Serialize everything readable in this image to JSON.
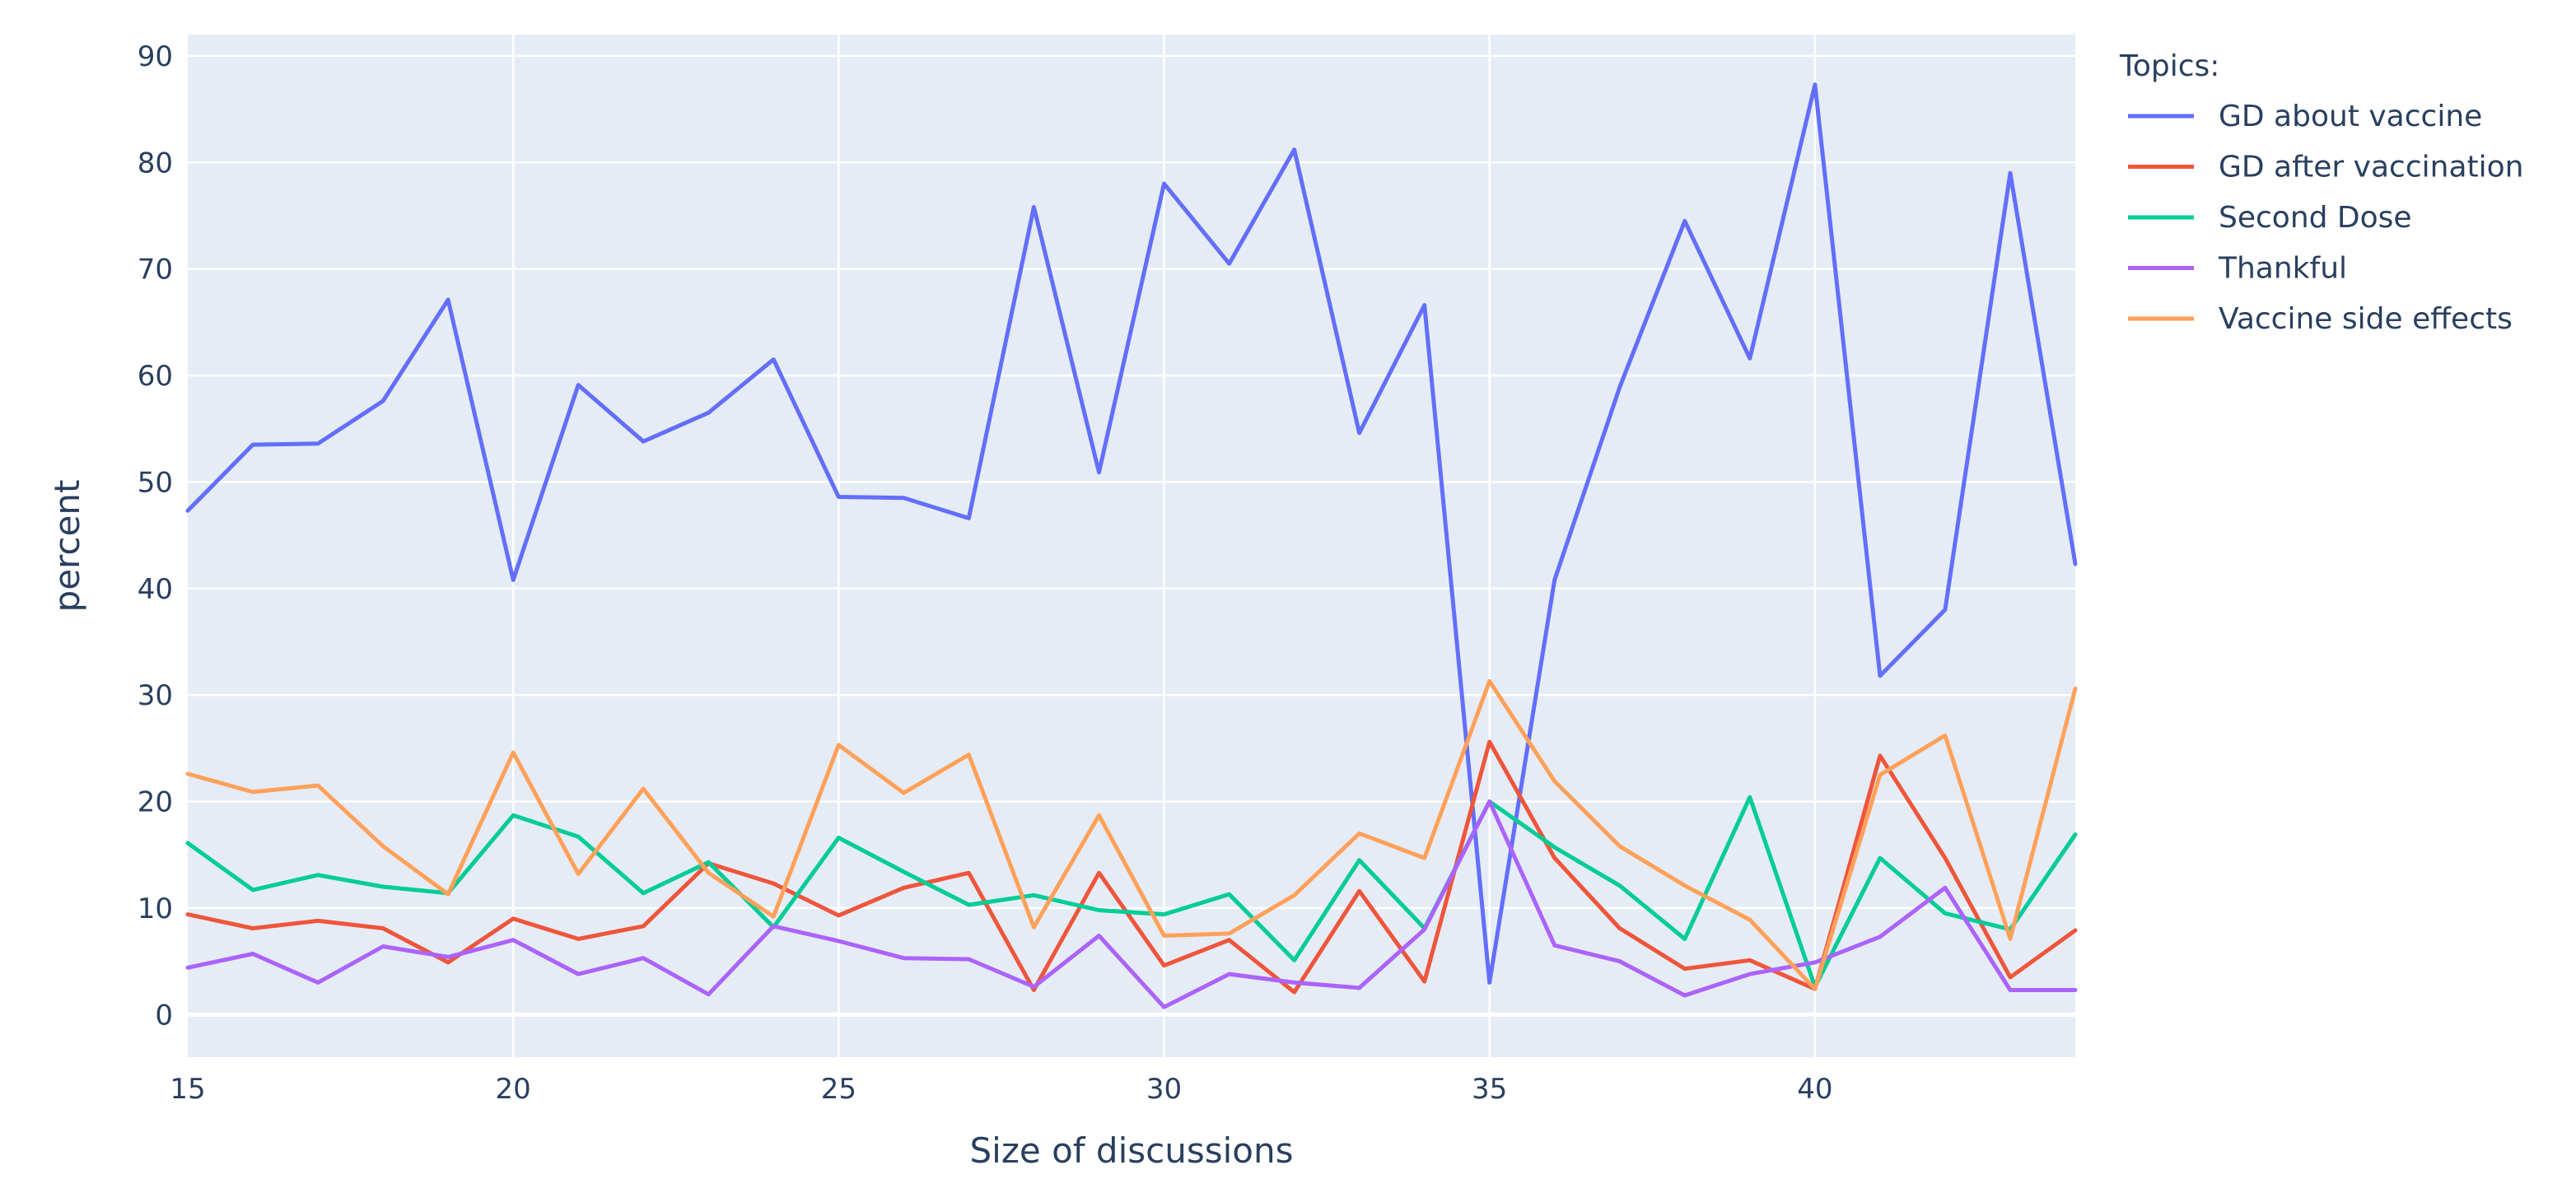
{
  "chart_data": {
    "type": "line",
    "xlabel": "Size of discussions",
    "ylabel": "percent",
    "xlim": [
      15,
      44
    ],
    "ylim": [
      -4,
      92
    ],
    "x_ticks": [
      15,
      20,
      25,
      30,
      35,
      40
    ],
    "y_ticks": [
      0,
      10,
      20,
      30,
      40,
      50,
      60,
      70,
      80,
      90
    ],
    "grid": true,
    "legend": {
      "title": "Topics:",
      "placement": "right"
    },
    "x": [
      15,
      16,
      17,
      18,
      19,
      20,
      21,
      22,
      23,
      24,
      25,
      26,
      27,
      28,
      29,
      30,
      31,
      32,
      33,
      34,
      35,
      36,
      37,
      38,
      39,
      40,
      41,
      42,
      43,
      44
    ],
    "series": [
      {
        "name": "GD about vaccine",
        "color": "#636efa",
        "values": [
          47.3,
          53.5,
          53.6,
          57.6,
          67.1,
          40.8,
          59.1,
          53.8,
          56.5,
          61.5,
          48.6,
          48.5,
          46.6,
          75.8,
          50.9,
          78.0,
          70.5,
          81.2,
          54.6,
          66.6,
          3.0,
          40.8,
          58.9,
          74.5,
          61.6,
          87.3,
          31.8,
          38.0,
          79.0,
          42.3
        ]
      },
      {
        "name": "GD after vaccination",
        "color": "#ef553b",
        "values": [
          9.4,
          8.1,
          8.8,
          8.1,
          4.9,
          9.0,
          7.1,
          8.3,
          14.2,
          12.3,
          9.3,
          11.9,
          13.3,
          2.3,
          13.3,
          4.6,
          7.0,
          2.1,
          11.6,
          3.1,
          25.6,
          14.7,
          8.1,
          4.3,
          5.1,
          2.4,
          24.3,
          14.7,
          3.5,
          7.9
        ]
      },
      {
        "name": "Second Dose",
        "color": "#00cc96",
        "values": [
          16.1,
          11.7,
          13.1,
          12.0,
          11.4,
          18.7,
          16.7,
          11.4,
          14.3,
          8.2,
          16.6,
          13.4,
          10.3,
          11.2,
          9.8,
          9.4,
          11.3,
          5.1,
          14.5,
          8.1,
          20.0,
          15.7,
          12.1,
          7.1,
          20.4,
          2.6,
          14.7,
          9.5,
          8.0,
          16.9
        ]
      },
      {
        "name": "Thankful",
        "color": "#ab63fa",
        "values": [
          4.4,
          5.7,
          3.0,
          6.4,
          5.4,
          7.0,
          3.8,
          5.3,
          1.9,
          8.3,
          6.9,
          5.3,
          5.2,
          2.6,
          7.4,
          0.7,
          3.8,
          3.0,
          2.5,
          8.0,
          20.0,
          6.5,
          5.0,
          1.8,
          3.8,
          4.9,
          7.3,
          11.9,
          2.3,
          2.3
        ]
      },
      {
        "name": "Vaccine side effects",
        "color": "#ffa15a",
        "values": [
          22.6,
          20.9,
          21.5,
          15.8,
          11.3,
          24.6,
          13.2,
          21.2,
          13.3,
          9.2,
          25.3,
          20.8,
          24.4,
          8.2,
          18.7,
          7.4,
          7.6,
          11.2,
          17.0,
          14.7,
          31.3,
          21.9,
          15.8,
          12.1,
          8.9,
          2.4,
          22.5,
          26.2,
          7.1,
          30.6
        ]
      }
    ]
  }
}
